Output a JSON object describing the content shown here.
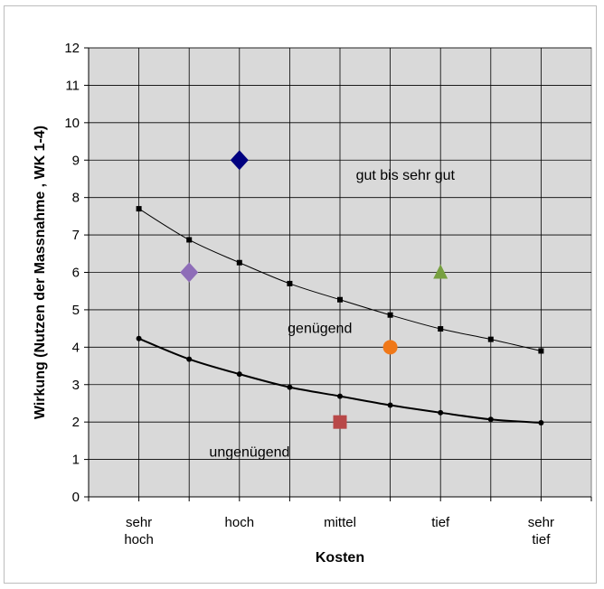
{
  "chart_data": {
    "type": "line",
    "title": "",
    "xlabel": "Kosten",
    "ylabel": "Wirkung (Nutzen der Massnahme , WK 1-4)",
    "ylim": [
      0,
      12
    ],
    "xlim": [
      0,
      9
    ],
    "grid": true,
    "legend": "none",
    "y_ticks": [
      "0",
      "1",
      "2",
      "3",
      "4",
      "5",
      "6",
      "7",
      "8",
      "9",
      "10",
      "11",
      "12"
    ],
    "x_tick_labels": [
      {
        "x": 1,
        "lines": [
          "sehr",
          "hoch"
        ]
      },
      {
        "x": 3,
        "lines": [
          "hoch"
        ]
      },
      {
        "x": 5,
        "lines": [
          "mittel"
        ]
      },
      {
        "x": 7,
        "lines": [
          "tief"
        ]
      },
      {
        "x": 9,
        "lines": [
          "sehr",
          "tief"
        ]
      }
    ],
    "series": [
      {
        "x": [
          1,
          2,
          3,
          4,
          5,
          6,
          7,
          8,
          9
        ],
        "values": [
          7.7,
          6.87,
          6.26,
          5.7,
          5.27,
          4.86,
          4.49,
          4.21,
          3.9
        ],
        "color": "#000000",
        "marker": "square"
      },
      {
        "x": [
          1,
          2,
          3,
          4,
          5,
          6,
          7,
          8,
          9
        ],
        "values": [
          4.23,
          3.68,
          3.28,
          2.93,
          2.69,
          2.45,
          2.25,
          2.07,
          1.98
        ],
        "color": "#000000",
        "marker": "circle"
      }
    ],
    "points": [
      {
        "x": 3,
        "y": 9,
        "marker": "diamond",
        "color": "#000080"
      },
      {
        "x": 2,
        "y": 6,
        "marker": "diamond",
        "color": "#8E6DB8"
      },
      {
        "x": 7,
        "y": 6,
        "marker": "triangle",
        "color": "#77A040"
      },
      {
        "x": 6,
        "y": 4,
        "marker": "circle",
        "color": "#F07818"
      },
      {
        "x": 5,
        "y": 2,
        "marker": "square",
        "color": "#B84848"
      }
    ],
    "annotations": [
      {
        "text": "gut bis sehr gut",
        "x": 6.3,
        "y": 8.6
      },
      {
        "text": "genügend",
        "x": 4.6,
        "y": 4.5
      },
      {
        "text": "ungenügend",
        "x": 3.2,
        "y": 1.2
      }
    ],
    "plot_background": "#D9D9D9"
  }
}
